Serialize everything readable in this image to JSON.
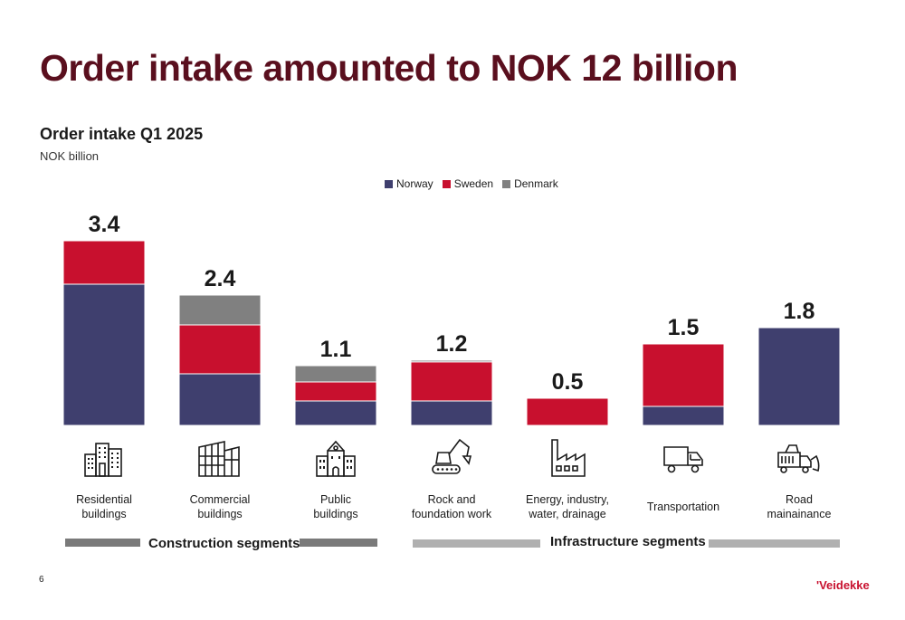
{
  "page": {
    "title": "Order intake amounted to NOK 12 billion",
    "page_number": "6",
    "logo_text": "'Veidekke"
  },
  "colors": {
    "title": "#5a0f1e",
    "norway": "#3f3f6e",
    "sweden": "#c8102e",
    "denmark": "#808080",
    "segment_construction": "#7a7a7a",
    "segment_infrastructure": "#b0b0b0"
  },
  "segments": {
    "construction": "Construction segments",
    "infrastructure": "Infrastructure segments"
  },
  "categories": [
    {
      "line1": "Residential",
      "line2": "buildings",
      "icon": "residential-buildings-icon"
    },
    {
      "line1": "Commercial",
      "line2": "buildings",
      "icon": "commercial-buildings-icon"
    },
    {
      "line1": "Public",
      "line2": "buildings",
      "icon": "public-building-icon"
    },
    {
      "line1": "Rock and",
      "line2": "foundation work",
      "icon": "excavator-icon"
    },
    {
      "line1": "Energy, industry,",
      "line2": "water, drainage",
      "icon": "factory-icon"
    },
    {
      "line1": "Transportation",
      "line2": "",
      "icon": "dump-truck-icon"
    },
    {
      "line1": "Road",
      "line2": "mainainance",
      "icon": "snow-plow-truck-icon"
    }
  ],
  "chart_data": {
    "type": "bar",
    "stacked": true,
    "title": "Order intake Q1 2025",
    "unit": "NOK billion",
    "legend_position": "top",
    "categories": [
      "Residential buildings",
      "Commercial buildings",
      "Public buildings",
      "Rock and foundation work",
      "Energy, industry, water, drainage",
      "Transportation",
      "Road mainainance"
    ],
    "totals": [
      "3.4",
      "2.4",
      "1.1",
      "1.2",
      "0.5",
      "1.5",
      "1.8"
    ],
    "series": [
      {
        "name": "Norway",
        "values": [
          2.6,
          0.95,
          0.45,
          0.45,
          0.0,
          0.35,
          1.8
        ]
      },
      {
        "name": "Sweden",
        "values": [
          0.8,
          0.9,
          0.35,
          0.72,
          0.5,
          1.15,
          0.0
        ]
      },
      {
        "name": "Denmark",
        "values": [
          0.0,
          0.55,
          0.3,
          0.03,
          0.0,
          0.0,
          0.0
        ]
      }
    ],
    "ylim": [
      0,
      3.5
    ],
    "grid": false
  }
}
